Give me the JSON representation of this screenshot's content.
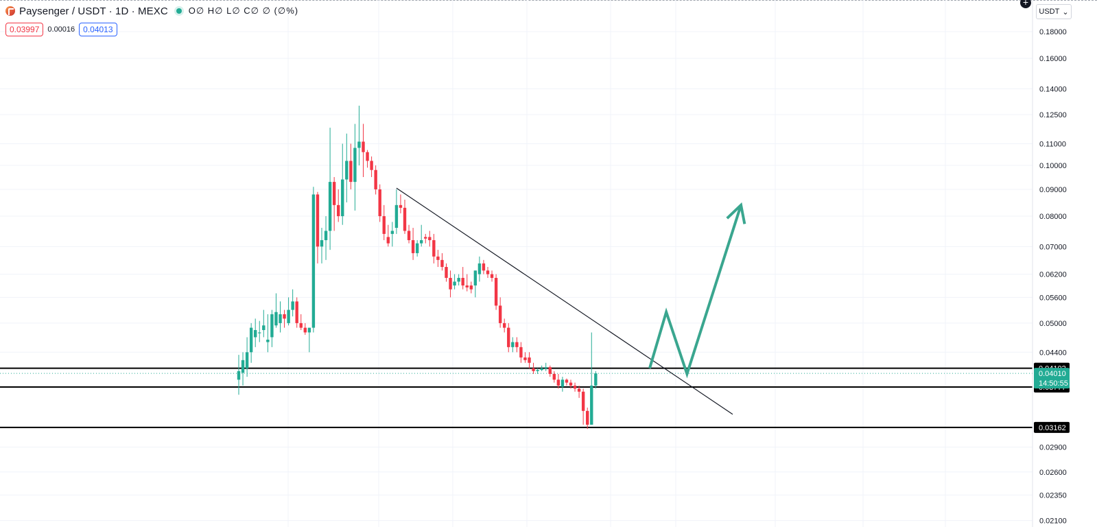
{
  "header": {
    "symbol": "Paysenger / USDT · 1D · MEXC",
    "ohlc": "O∅ H∅ L∅ C∅ ∅ (∅%)",
    "sell_price": "0.03997",
    "spread": "0.00016",
    "buy_price": "0.04013"
  },
  "toolbar": {
    "currency": "USDT",
    "currency_caret": "⌄",
    "plus": "+"
  },
  "colors": {
    "up": "#22ab94",
    "down": "#f23645",
    "trendline": "#131722",
    "projection": "#3aa68f",
    "grid": "#f0f3fa",
    "sell": "#f23645",
    "buy": "#2962ff"
  },
  "chart_data": {
    "type": "candlestick",
    "y_scale": "log",
    "ylim": [
      0.0206,
      0.185
    ],
    "y_ticks": [
      "0.18000",
      "0.16000",
      "0.14000",
      "0.12500",
      "0.11000",
      "0.10000",
      "0.09000",
      "0.08000",
      "0.07000",
      "0.06200",
      "0.05600",
      "0.05000",
      "0.04400",
      "0.02900",
      "0.02600",
      "0.02350",
      "0.02100"
    ],
    "candles": [
      [
        0.039,
        0.0435,
        0.0365,
        0.0405
      ],
      [
        0.0402,
        0.044,
        0.038,
        0.0425
      ],
      [
        0.041,
        0.047,
        0.0395,
        0.044
      ],
      [
        0.044,
        0.05,
        0.042,
        0.049
      ],
      [
        0.047,
        0.051,
        0.045,
        0.0485
      ],
      [
        0.048,
        0.0505,
        0.046,
        0.048
      ],
      [
        0.0485,
        0.053,
        0.047,
        0.0495
      ],
      [
        0.046,
        0.052,
        0.044,
        0.0465
      ],
      [
        0.047,
        0.053,
        0.045,
        0.052
      ],
      [
        0.0495,
        0.057,
        0.049,
        0.0525
      ],
      [
        0.05,
        0.055,
        0.048,
        0.052
      ],
      [
        0.052,
        0.053,
        0.049,
        0.051
      ],
      [
        0.05,
        0.056,
        0.0495,
        0.053
      ],
      [
        0.053,
        0.058,
        0.0515,
        0.055
      ],
      [
        0.055,
        0.056,
        0.049,
        0.05
      ],
      [
        0.05,
        0.052,
        0.0485,
        0.049
      ],
      [
        0.049,
        0.05,
        0.0475,
        0.048
      ],
      [
        0.048,
        0.049,
        0.044,
        0.049
      ],
      [
        0.049,
        0.091,
        0.048,
        0.088
      ],
      [
        0.088,
        0.089,
        0.065,
        0.07
      ],
      [
        0.07,
        0.076,
        0.065,
        0.072
      ],
      [
        0.072,
        0.08,
        0.066,
        0.075
      ],
      [
        0.075,
        0.118,
        0.069,
        0.093
      ],
      [
        0.093,
        0.095,
        0.075,
        0.084
      ],
      [
        0.084,
        0.09,
        0.078,
        0.08
      ],
      [
        0.08,
        0.11,
        0.077,
        0.094
      ],
      [
        0.094,
        0.115,
        0.085,
        0.102
      ],
      [
        0.102,
        0.11,
        0.09,
        0.093
      ],
      [
        0.093,
        0.12,
        0.082,
        0.108
      ],
      [
        0.108,
        0.13,
        0.1,
        0.111
      ],
      [
        0.111,
        0.12,
        0.095,
        0.106
      ],
      [
        0.106,
        0.107,
        0.099,
        0.102
      ],
      [
        0.102,
        0.104,
        0.095,
        0.098
      ],
      [
        0.098,
        0.1,
        0.088,
        0.09
      ],
      [
        0.09,
        0.092,
        0.078,
        0.08
      ],
      [
        0.08,
        0.084,
        0.072,
        0.074
      ],
      [
        0.073,
        0.077,
        0.07,
        0.071
      ],
      [
        0.074,
        0.078,
        0.07,
        0.075
      ],
      [
        0.076,
        0.09,
        0.074,
        0.084
      ],
      [
        0.084,
        0.088,
        0.081,
        0.083
      ],
      [
        0.083,
        0.086,
        0.074,
        0.075
      ],
      [
        0.075,
        0.077,
        0.071,
        0.072
      ],
      [
        0.072,
        0.076,
        0.066,
        0.068
      ],
      [
        0.068,
        0.072,
        0.067,
        0.071
      ],
      [
        0.071,
        0.077,
        0.07,
        0.072
      ],
      [
        0.073,
        0.074,
        0.071,
        0.0725
      ],
      [
        0.073,
        0.075,
        0.07,
        0.072
      ],
      [
        0.072,
        0.074,
        0.065,
        0.067
      ],
      [
        0.067,
        0.069,
        0.064,
        0.066
      ],
      [
        0.066,
        0.068,
        0.063,
        0.064
      ],
      [
        0.064,
        0.065,
        0.06,
        0.061
      ],
      [
        0.061,
        0.063,
        0.056,
        0.058
      ],
      [
        0.059,
        0.062,
        0.058,
        0.06
      ],
      [
        0.06,
        0.062,
        0.059,
        0.061
      ],
      [
        0.061,
        0.064,
        0.058,
        0.059
      ],
      [
        0.059,
        0.062,
        0.0575,
        0.0585
      ],
      [
        0.059,
        0.06,
        0.057,
        0.058
      ],
      [
        0.059,
        0.063,
        0.056,
        0.063
      ],
      [
        0.062,
        0.067,
        0.06,
        0.065
      ],
      [
        0.065,
        0.066,
        0.062,
        0.063
      ],
      [
        0.063,
        0.064,
        0.061,
        0.062
      ],
      [
        0.062,
        0.063,
        0.06,
        0.061
      ],
      [
        0.061,
        0.062,
        0.053,
        0.054
      ],
      [
        0.054,
        0.056,
        0.049,
        0.05
      ],
      [
        0.05,
        0.051,
        0.048,
        0.049
      ],
      [
        0.049,
        0.05,
        0.044,
        0.045
      ],
      [
        0.045,
        0.047,
        0.044,
        0.046
      ],
      [
        0.046,
        0.047,
        0.044,
        0.045
      ],
      [
        0.045,
        0.046,
        0.042,
        0.043
      ],
      [
        0.043,
        0.044,
        0.042,
        0.0425
      ],
      [
        0.043,
        0.044,
        0.041,
        0.042
      ],
      [
        0.041,
        0.042,
        0.04,
        0.0405
      ],
      [
        0.0405,
        0.041,
        0.04,
        0.0407
      ],
      [
        0.0407,
        0.0415,
        0.0405,
        0.041
      ],
      [
        0.041,
        0.042,
        0.0405,
        0.0412
      ],
      [
        0.0412,
        0.0415,
        0.0395,
        0.04
      ],
      [
        0.04,
        0.0405,
        0.0385,
        0.039
      ],
      [
        0.039,
        0.04,
        0.0375,
        0.038
      ],
      [
        0.0378,
        0.0395,
        0.037,
        0.039
      ],
      [
        0.039,
        0.0392,
        0.038,
        0.0385
      ],
      [
        0.0385,
        0.039,
        0.0375,
        0.038
      ],
      [
        0.038,
        0.0385,
        0.037,
        0.0375
      ],
      [
        0.0375,
        0.038,
        0.036,
        0.037
      ],
      [
        0.037,
        0.0375,
        0.032,
        0.034
      ],
      [
        0.034,
        0.0345,
        0.0314,
        0.032
      ],
      [
        0.032,
        0.048,
        0.032,
        0.038
      ],
      [
        0.038,
        0.0405,
        0.0375,
        0.0401
      ]
    ],
    "levels": [
      {
        "price": 0.04102,
        "label": "0.04102",
        "color": "#000000"
      },
      {
        "price": 0.03777,
        "label": "0.03777",
        "color": "#000000"
      },
      {
        "price": 0.03162,
        "label": "0.03162",
        "color": "#000000"
      }
    ],
    "last_price": {
      "price": 0.0401,
      "label": "0.04010",
      "countdown": "14:50:55",
      "color": "#22ab94"
    },
    "trendline": [
      {
        "candle": 38,
        "price": 0.0905
      },
      {
        "candle": 119,
        "price": 0.0335
      }
    ],
    "projection": [
      {
        "candle": 99,
        "price": 0.041
      },
      {
        "candle": 103,
        "price": 0.0525
      },
      {
        "candle": 108,
        "price": 0.04
      },
      {
        "candle": 121,
        "price": 0.084
      }
    ],
    "projection_arrowhead": true
  }
}
